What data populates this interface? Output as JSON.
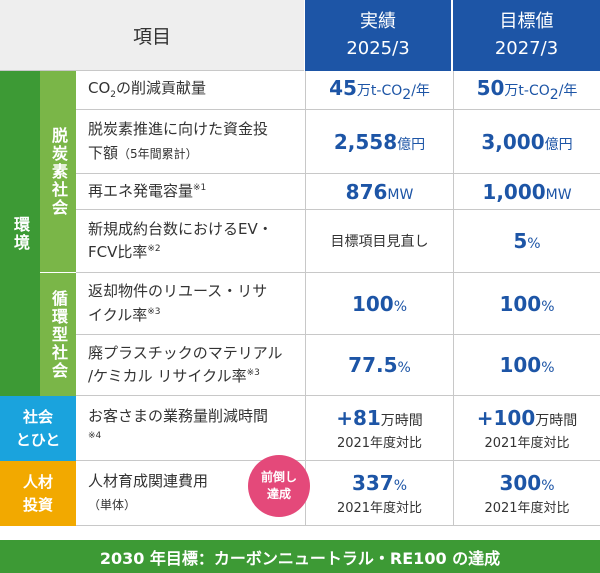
{
  "header": {
    "item": "項目",
    "col1_line1": "実績",
    "col1_line2": "2025/3",
    "col2_line1": "目標値",
    "col2_line2": "2027/3"
  },
  "categories": {
    "env": "環境",
    "decarb": "脱炭素社会",
    "circular": "循環型社会",
    "society_line1": "社会",
    "society_line2": "とひと",
    "hr_line1": "人材",
    "hr_line2": "投資"
  },
  "rows": {
    "co2": {
      "label_a": "CO",
      "label_b": "2",
      "label_c": "の削減貢献量",
      "v1_num": "45",
      "v1_unit": "万t-CO",
      "v1_sub": "2",
      "v1_tail": "/年",
      "v2_num": "50",
      "v2_unit": "万t-CO",
      "v2_sub": "2",
      "v2_tail": "/年"
    },
    "finance": {
      "label_line1": "脱炭素推進に向けた資金投",
      "label_line2": "下額",
      "label_small": "（5年間累計）",
      "v1_num": "2,558",
      "v1_unit": "億円",
      "v2_num": "3,000",
      "v2_unit": "億円"
    },
    "renew": {
      "label": "再エネ発電容量",
      "note": "※1",
      "v1_num": "876",
      "v1_unit": "MW",
      "v2_num": "1,000",
      "v2_unit": "MW"
    },
    "ev": {
      "label_line1": "新規成約台数におけるEV・",
      "label_line2": "FCV比率",
      "note": "※2",
      "v1_text": "目標項目見直し",
      "v2_num": "5",
      "v2_unit": "%"
    },
    "reuse": {
      "label_line1": "返却物件のリユース・リサ",
      "label_line2": "イクル率",
      "note": "※3",
      "v1_num": "100",
      "v1_unit": "%",
      "v2_num": "100",
      "v2_unit": "%"
    },
    "plastic": {
      "label_line1": "廃プラスチックのマテリアル",
      "label_line2": "/ケミカル リサイクル率",
      "note": "※3",
      "v1_num": "77.5",
      "v1_unit": "%",
      "v2_num": "100",
      "v2_unit": "%"
    },
    "workload": {
      "label_line1": "お客さまの業務量削減時間",
      "note": "※4",
      "v1_num": "+81",
      "v1_unit": "万時間",
      "v1_sub": "2021年度対比",
      "v2_num": "+100",
      "v2_unit": "万時間",
      "v2_sub": "2021年度対比"
    },
    "hr": {
      "label_line1": "人材育成関連費用",
      "label_line2": "（単体）",
      "v1_num": "337",
      "v1_unit": "%",
      "v1_sub": "2021年度対比",
      "v2_num": "300",
      "v2_unit": "%",
      "v2_sub": "2021年度対比"
    }
  },
  "badge": {
    "line1": "前倒し",
    "line2": "達成"
  },
  "footer": "2030 年目標：カーボンニュートラル・RE100 の達成",
  "colors": {
    "blue": "#1d55a6",
    "green_dark": "#3d9a35",
    "green_light": "#7ab648",
    "cyan": "#1aa3dd",
    "orange": "#f2a900",
    "pink": "#e4497a"
  }
}
